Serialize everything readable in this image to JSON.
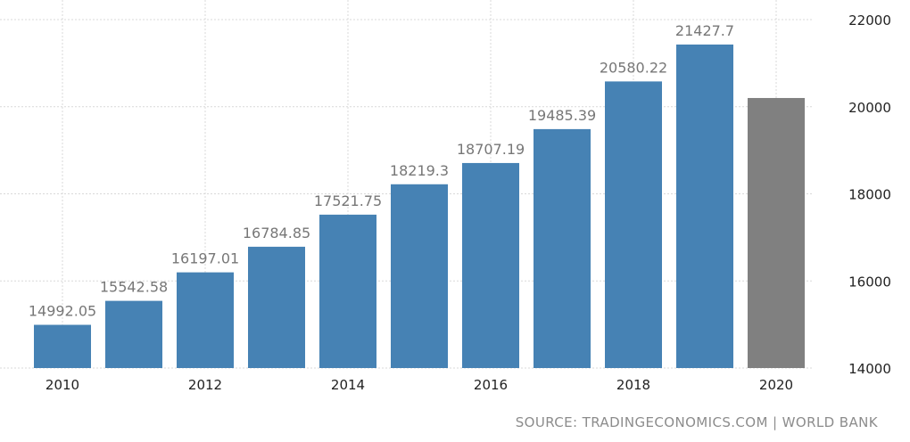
{
  "chart_data": {
    "type": "bar",
    "categories": [
      "2010",
      "2011",
      "2012",
      "2013",
      "2014",
      "2015",
      "2016",
      "2017",
      "2018",
      "2019",
      "2020"
    ],
    "values": [
      14992.05,
      15542.58,
      16197.01,
      16784.85,
      17521.75,
      18219.3,
      18707.19,
      19485.39,
      20580.22,
      21427.7,
      20200
    ],
    "data_labels": [
      "14992.05",
      "15542.58",
      "16197.01",
      "16784.85",
      "17521.75",
      "18219.3",
      "18707.19",
      "19485.39",
      "20580.22",
      "21427.7",
      ""
    ],
    "x_tick_labels": [
      "2010",
      "",
      "2012",
      "",
      "2014",
      "",
      "2016",
      "",
      "2018",
      "",
      "2020"
    ],
    "y_ticks": [
      "14000",
      "16000",
      "18000",
      "20000",
      "22000"
    ],
    "ylim": [
      14000,
      22000
    ],
    "y_axis_side": "right",
    "grid": true,
    "title": "",
    "xlabel": "",
    "ylabel": "",
    "colors": {
      "bar": "#4682b4",
      "bar_forecast": "#808080",
      "label": "#777777",
      "grid": "#d9d9d9"
    }
  },
  "source": "SOURCE: TRADINGECONOMICS.COM | WORLD BANK"
}
